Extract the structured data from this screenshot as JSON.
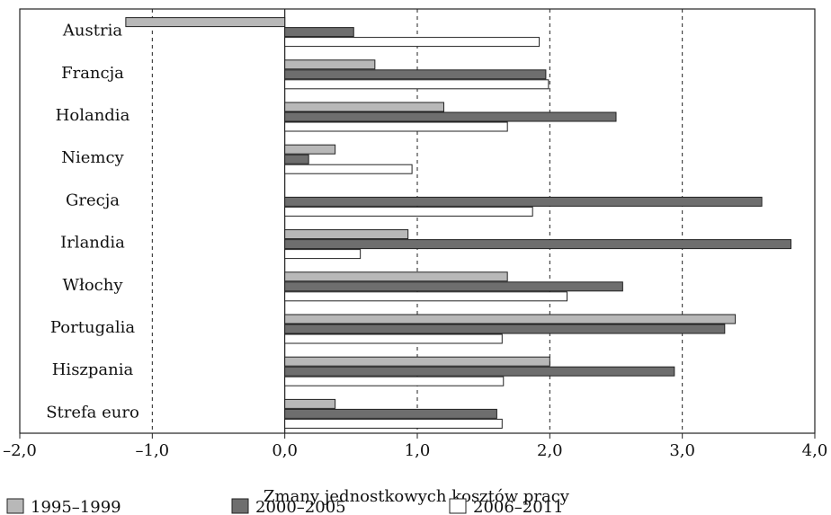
{
  "chart_data": {
    "type": "bar",
    "orientation": "horizontal",
    "categories": [
      "Austria",
      "Francja",
      "Holandia",
      "Niemcy",
      "Grecja",
      "Irlandia",
      "Włochy",
      "Portugalia",
      "Hiszpania",
      "Strefa euro"
    ],
    "series": [
      {
        "name": "1995–1999",
        "color": "#b8b8b8",
        "values": [
          -1.2,
          0.68,
          1.2,
          0.38,
          null,
          0.93,
          1.68,
          3.4,
          2.0,
          0.38
        ]
      },
      {
        "name": "2000–2005",
        "color": "#6e6e6e",
        "values": [
          0.52,
          1.97,
          2.5,
          0.18,
          3.6,
          3.82,
          2.55,
          3.32,
          2.94,
          1.6
        ]
      },
      {
        "name": "2006–2011",
        "color": "#ffffff",
        "values": [
          1.92,
          1.99,
          1.68,
          0.96,
          1.87,
          0.57,
          2.13,
          1.64,
          1.65,
          1.64
        ]
      }
    ],
    "xlabel": "Zmany jednostkowych kosztów pracy",
    "xlim": [
      -2,
      4
    ],
    "xticks": [
      -2,
      -1,
      0,
      1,
      2,
      3,
      4
    ],
    "xtick_labels": [
      "–2,0",
      "–1,0",
      "0,0",
      "1,0",
      "2,0",
      "3,0",
      "4,0"
    ],
    "gridlines": [
      -1,
      1,
      2,
      3
    ],
    "grid_style": "dashed vertical",
    "legend_position": "bottom"
  }
}
